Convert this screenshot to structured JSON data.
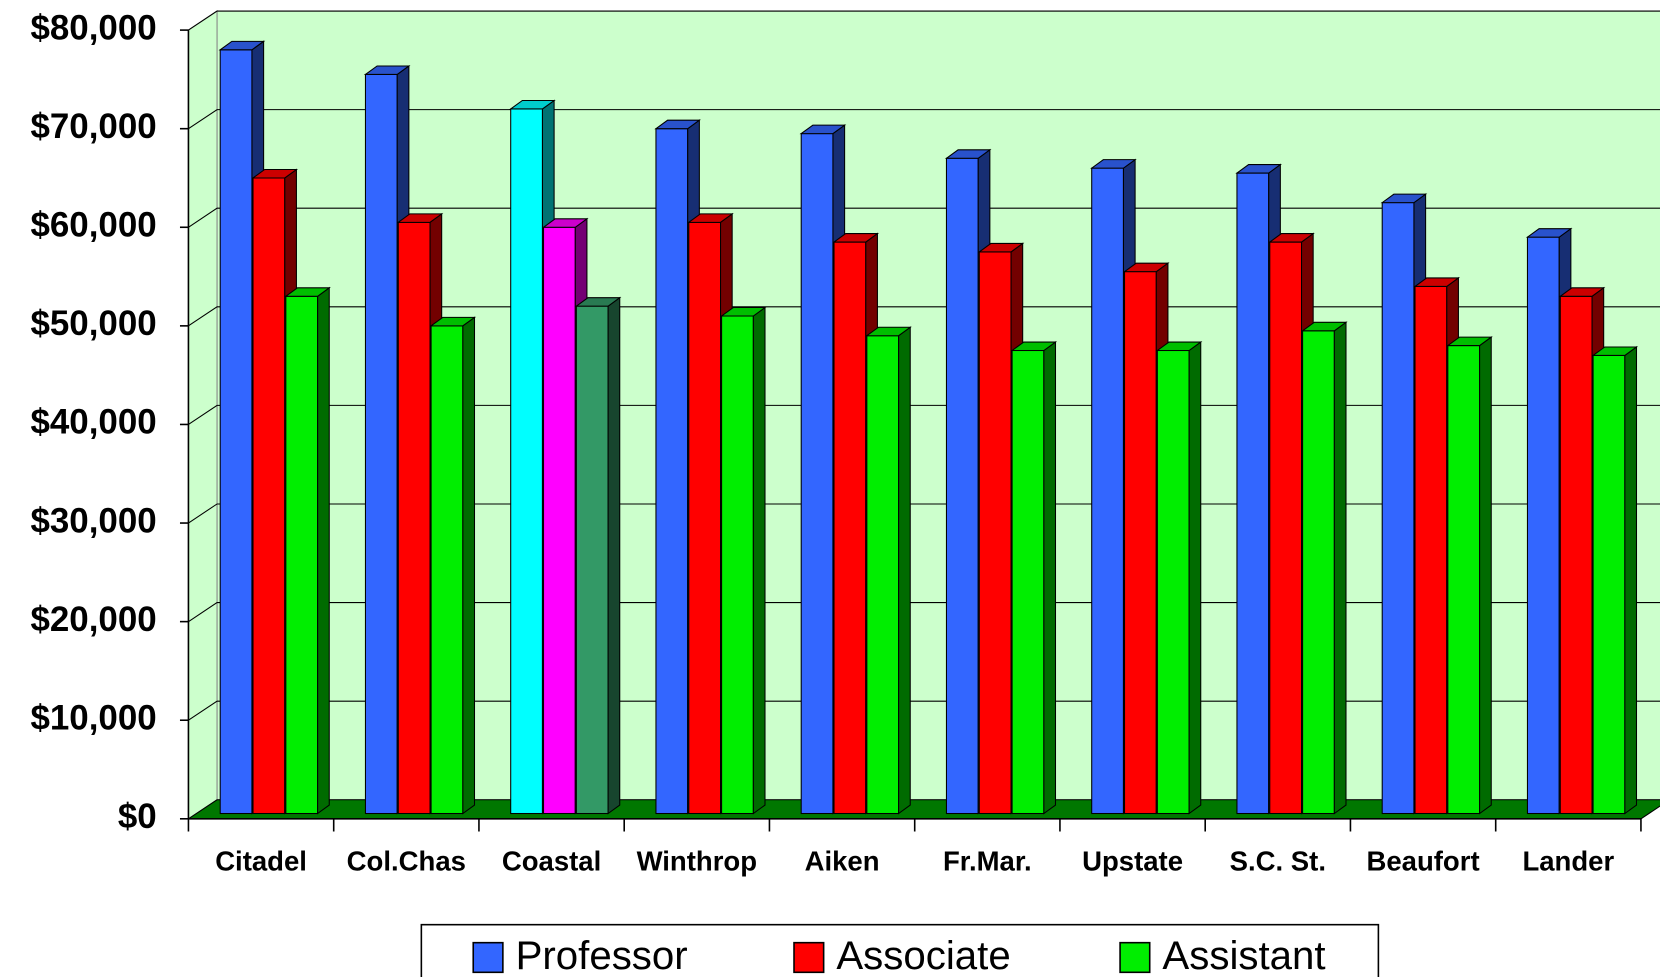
{
  "chart_data": {
    "type": "bar3d",
    "categories": [
      "Citadel",
      "Col.Chas",
      "Coastal",
      "Winthrop",
      "Aiken",
      "Fr.Mar.",
      "Upstate",
      "S.C. St.",
      "Beaufort",
      "Lander"
    ],
    "series": [
      {
        "name": "Professor",
        "color": "#3366ff",
        "colors": [
          "#3366ff",
          "#3366ff",
          "#00ffff",
          "#3366ff",
          "#3366ff",
          "#3366ff",
          "#3366ff",
          "#3366ff",
          "#3366ff",
          "#3366ff"
        ],
        "values": [
          78000,
          75500,
          72000,
          70000,
          69500,
          67000,
          66000,
          65500,
          62500,
          59000
        ]
      },
      {
        "name": "Associate",
        "color": "#ff0000",
        "colors": [
          "#ff0000",
          "#ff0000",
          "#ff00ff",
          "#ff0000",
          "#ff0000",
          "#ff0000",
          "#ff0000",
          "#ff0000",
          "#ff0000",
          "#ff0000"
        ],
        "values": [
          65000,
          60500,
          60000,
          60500,
          58500,
          57500,
          55500,
          58500,
          54000,
          53000
        ]
      },
      {
        "name": "Assistant",
        "color": "#00ee00",
        "colors": [
          "#00ee00",
          "#00ee00",
          "#339966",
          "#00ee00",
          "#00ee00",
          "#00ee00",
          "#00ee00",
          "#00ee00",
          "#00ee00",
          "#00ee00"
        ],
        "values": [
          53000,
          50000,
          52000,
          51000,
          49000,
          47500,
          47500,
          49500,
          48000,
          47000
        ]
      }
    ],
    "ylim": [
      0,
      80000
    ],
    "yticks": [
      {
        "value": 0,
        "label": "$0"
      },
      {
        "value": 10000,
        "label": "$10,000"
      },
      {
        "value": 20000,
        "label": "$20,000"
      },
      {
        "value": 30000,
        "label": "$30,000"
      },
      {
        "value": 40000,
        "label": "$40,000"
      },
      {
        "value": 50000,
        "label": "$50,000"
      },
      {
        "value": 60000,
        "label": "$60,000"
      },
      {
        "value": 70000,
        "label": "$70,000"
      },
      {
        "value": 80000,
        "label": "$80,000"
      }
    ],
    "grid": true,
    "wall_color": "#ccffcc",
    "floor_color": "#007700",
    "legend": "bottom"
  }
}
